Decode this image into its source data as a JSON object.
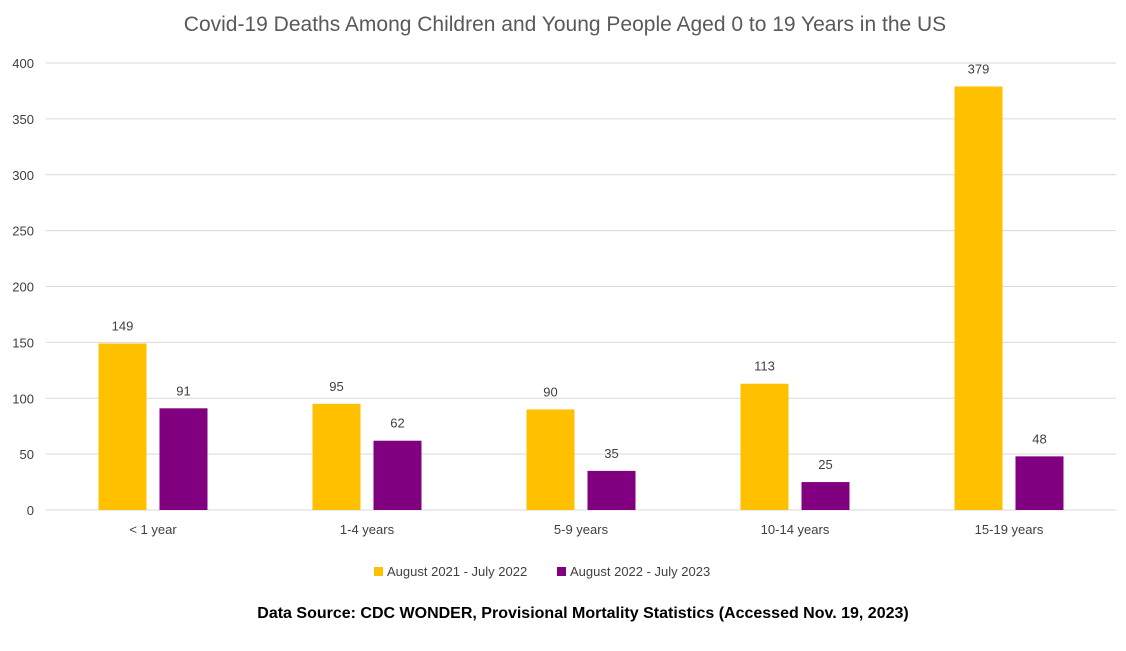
{
  "chart_data": {
    "type": "bar",
    "title": "Covid-19 Deaths Among Children and Young People Aged 0 to 19 Years in the US",
    "categories": [
      "< 1 year",
      "1-4 years",
      "5-9 years",
      "10-14 years",
      "15-19 years"
    ],
    "series": [
      {
        "name": "August 2021 - July 2022",
        "color": "#ffc000",
        "values": [
          149,
          95,
          90,
          113,
          379
        ]
      },
      {
        "name": "August 2022 - July 2023",
        "color": "#800080",
        "values": [
          91,
          62,
          35,
          25,
          48
        ]
      }
    ],
    "ylim": [
      0,
      400
    ],
    "yticks": [
      0,
      50,
      100,
      150,
      200,
      250,
      300,
      350,
      400
    ],
    "grid": true,
    "legend_position": "bottom",
    "source": "Data Source: CDC WONDER, Provisional Mortality Statistics (Accessed Nov. 19, 2023)"
  }
}
